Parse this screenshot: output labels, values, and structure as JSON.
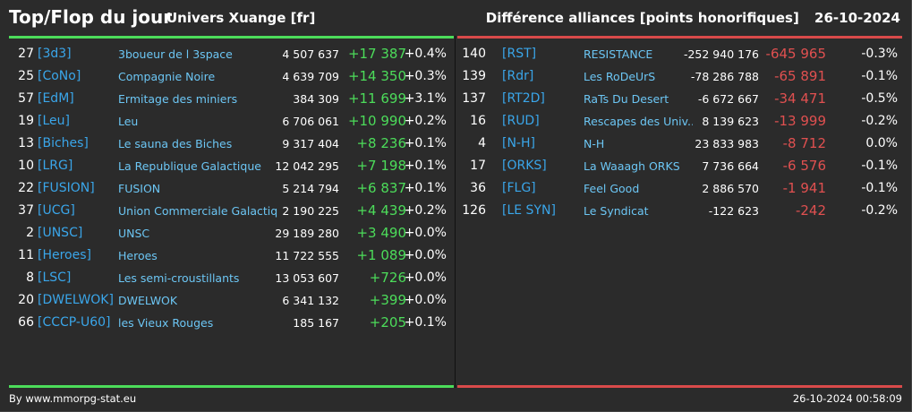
{
  "header": {
    "title": "Top/Flop du jour",
    "universe": "Univers Xuange [fr]",
    "subject": "Différence alliances [points honorifiques]",
    "date": "26-10-2024"
  },
  "colors": {
    "top": "#4cdc5a",
    "flop": "#d94a4a",
    "tag": "#3aa6ea",
    "name": "#6cc6f4"
  },
  "top": [
    {
      "rank": "27",
      "tag": "[3d3]",
      "name": "3boueur de l 3space",
      "points": "4 507 637",
      "diff": "+17 387",
      "pct": "+0.4%"
    },
    {
      "rank": "25",
      "tag": "[CoNo]",
      "name": "Compagnie Noire",
      "points": "4 639 709",
      "diff": "+14 350",
      "pct": "+0.3%"
    },
    {
      "rank": "57",
      "tag": "[EdM]",
      "name": "Ermitage des miniers",
      "points": "384 309",
      "diff": "+11 699",
      "pct": "+3.1%"
    },
    {
      "rank": "19",
      "tag": "[Leu]",
      "name": "Leu",
      "points": "6 706 061",
      "diff": "+10 990",
      "pct": "+0.2%"
    },
    {
      "rank": "13",
      "tag": "[Biches]",
      "name": "Le sauna des Biches",
      "points": "9 317 404",
      "diff": "+8 236",
      "pct": "+0.1%"
    },
    {
      "rank": "10",
      "tag": "[LRG]",
      "name": "La Republique Galactique",
      "points": "12 042 295",
      "diff": "+7 198",
      "pct": "+0.1%"
    },
    {
      "rank": "22",
      "tag": "[FUSION]",
      "name": "FUSION",
      "points": "5 214 794",
      "diff": "+6 837",
      "pct": "+0.1%"
    },
    {
      "rank": "37",
      "tag": "[UCG]",
      "name": "Union Commerciale Galactique",
      "points": "2 190 225",
      "diff": "+4 439",
      "pct": "+0.2%"
    },
    {
      "rank": "2",
      "tag": "[UNSC]",
      "name": "UNSC",
      "points": "29 189 280",
      "diff": "+3 490",
      "pct": "+0.0%"
    },
    {
      "rank": "11",
      "tag": "[Heroes]",
      "name": "Heroes",
      "points": "11 722 555",
      "diff": "+1 089",
      "pct": "+0.0%"
    },
    {
      "rank": "8",
      "tag": "[LSC]",
      "name": "Les semi-croustillants",
      "points": "13 053 607",
      "diff": "+726",
      "pct": "+0.0%"
    },
    {
      "rank": "20",
      "tag": "[DWELWOK]",
      "name": "DWELWOK",
      "points": "6 341 132",
      "diff": "+399",
      "pct": "+0.0%"
    },
    {
      "rank": "66",
      "tag": "[CCCP-U60]",
      "name": "les Vieux Rouges",
      "points": "185 167",
      "diff": "+205",
      "pct": "+0.1%"
    }
  ],
  "flop": [
    {
      "rank": "140",
      "tag": "[RST]",
      "name": "RESISTANCE",
      "points": "-252 940 176",
      "diff": "-645 965",
      "pct": "-0.3%"
    },
    {
      "rank": "139",
      "tag": "[Rdr]",
      "name": "Les RoDeUrS",
      "points": "-78 286 788",
      "diff": "-65 891",
      "pct": "-0.1%"
    },
    {
      "rank": "137",
      "tag": "[RT2D]",
      "name": "RaTs Du Desert",
      "points": "-6 672 667",
      "diff": "-34 471",
      "pct": "-0.5%"
    },
    {
      "rank": "16",
      "tag": "[RUD]",
      "name": "Rescapes des Univ...",
      "points": "8 139 623",
      "diff": "-13 999",
      "pct": "-0.2%"
    },
    {
      "rank": "4",
      "tag": "[N-H]",
      "name": "N-H",
      "points": "23 833 983",
      "diff": "-8 712",
      "pct": "0.0%"
    },
    {
      "rank": "17",
      "tag": "[ORKS]",
      "name": "La Waaagh ORKS",
      "points": "7 736 664",
      "diff": "-6 576",
      "pct": "-0.1%"
    },
    {
      "rank": "36",
      "tag": "[FLG]",
      "name": "Feel Good",
      "points": "2 886 570",
      "diff": "-1 941",
      "pct": "-0.1%"
    },
    {
      "rank": "126",
      "tag": "[LE SYN]",
      "name": "Le Syndicat",
      "points": "-122 623",
      "diff": "-242",
      "pct": "-0.2%"
    }
  ],
  "footer": {
    "credit": "By www.mmorpg-stat.eu",
    "timestamp": "26-10-2024 00:58:09"
  }
}
